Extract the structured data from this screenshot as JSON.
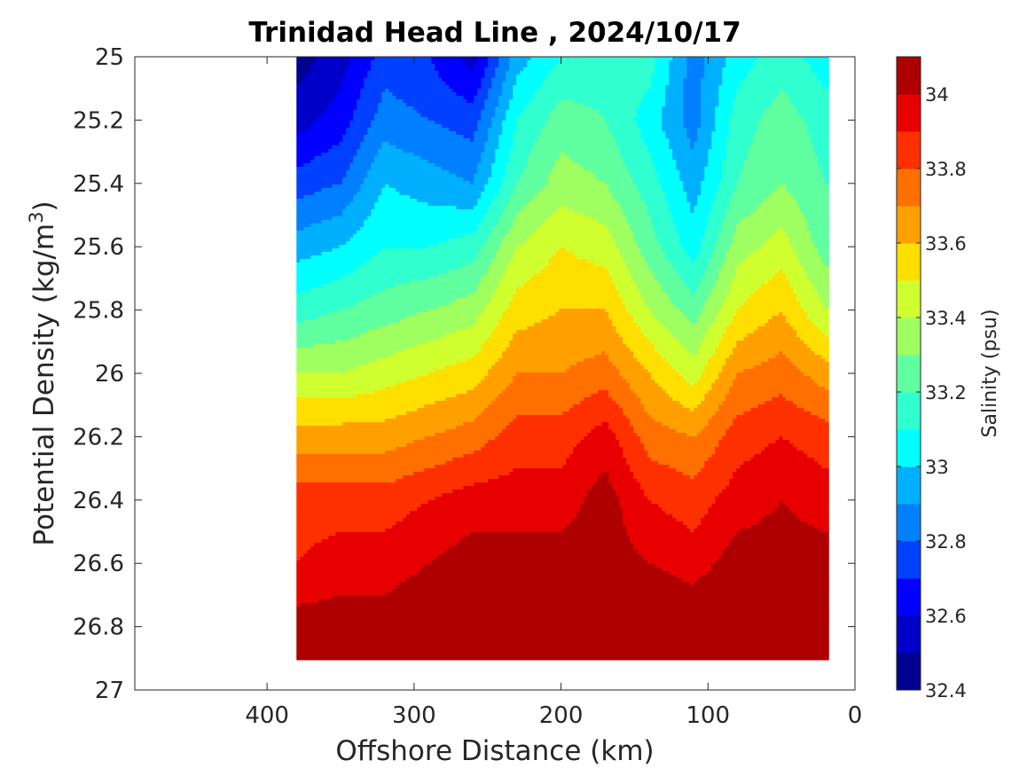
{
  "chart_data": {
    "type": "heatmap",
    "title": "Trinidad Head Line , 2024/10/17",
    "xlabel": "Offshore Distance (km)",
    "ylabel_main": "Potential Density (kg/m",
    "ylabel_sup": "3",
    "ylabel_close": ")",
    "x_reversed": true,
    "y_reversed": true,
    "xlim": [
      0,
      490
    ],
    "ylim": [
      25,
      27
    ],
    "x_ticks": [
      "400",
      "300",
      "200",
      "100",
      "0"
    ],
    "x_tick_values": [
      400,
      300,
      200,
      100,
      0
    ],
    "y_ticks": [
      "25",
      "25.2",
      "25.4",
      "25.6",
      "25.8",
      "26",
      "26.2",
      "26.4",
      "26.6",
      "26.8",
      "27"
    ],
    "y_tick_values": [
      25,
      25.2,
      25.4,
      25.6,
      25.8,
      26,
      26.2,
      26.4,
      26.6,
      26.8,
      27
    ],
    "colorbar": {
      "label": "Salinity (psu)",
      "range": [
        32.4,
        34.1
      ],
      "tick_labels": [
        "34",
        "33.8",
        "33.6",
        "33.4",
        "33.2",
        "33",
        "32.8",
        "32.6",
        "32.4"
      ],
      "tick_values": [
        34,
        33.8,
        33.6,
        33.4,
        33.2,
        33,
        32.8,
        32.6,
        32.4
      ],
      "levels": [
        32.4,
        32.5,
        32.6,
        32.7,
        32.8,
        32.9,
        33.0,
        33.1,
        33.2,
        33.3,
        33.4,
        33.5,
        33.6,
        33.7,
        33.8,
        33.9,
        34.0
      ],
      "colors": [
        "#00008f",
        "#0000c8",
        "#0000ff",
        "#0040ff",
        "#0080ff",
        "#00b0ff",
        "#00ffff",
        "#30ffd0",
        "#60ff9f",
        "#9fff60",
        "#d0ff30",
        "#ffdf00",
        "#ffa000",
        "#ff7000",
        "#ff3000",
        "#e80000",
        "#af0000"
      ]
    },
    "stations_km": [
      380,
      350,
      320,
      290,
      260,
      230,
      200,
      170,
      140,
      110,
      80,
      50,
      20
    ],
    "density_levels": [
      25.0,
      25.2,
      25.4,
      25.6,
      25.8,
      26.0,
      26.2,
      26.4,
      26.6,
      26.8,
      26.9
    ],
    "salinity": [
      [
        32.45,
        32.55,
        32.75,
        32.7,
        32.55,
        32.95,
        33.1,
        33.15,
        33.15,
        32.85,
        33.05,
        33.15,
        33.05
      ],
      [
        32.55,
        32.65,
        32.85,
        32.8,
        32.75,
        33.1,
        33.25,
        33.2,
        33.05,
        32.85,
        33.15,
        33.25,
        33.15
      ],
      [
        32.75,
        32.8,
        33.0,
        32.95,
        32.9,
        33.2,
        33.35,
        33.3,
        33.15,
        32.95,
        33.2,
        33.3,
        33.2
      ],
      [
        32.95,
        33.0,
        33.1,
        33.1,
        33.15,
        33.4,
        33.5,
        33.45,
        33.25,
        33.05,
        33.35,
        33.45,
        33.25
      ],
      [
        33.15,
        33.2,
        33.25,
        33.3,
        33.35,
        33.55,
        33.6,
        33.6,
        33.4,
        33.25,
        33.5,
        33.6,
        33.4
      ],
      [
        33.4,
        33.4,
        33.45,
        33.5,
        33.55,
        33.7,
        33.7,
        33.75,
        33.6,
        33.45,
        33.7,
        33.75,
        33.65
      ],
      [
        33.65,
        33.65,
        33.65,
        33.7,
        33.75,
        33.85,
        33.85,
        33.95,
        33.75,
        33.7,
        33.85,
        33.9,
        33.85
      ],
      [
        33.85,
        33.85,
        33.85,
        33.9,
        33.95,
        33.95,
        33.95,
        34.05,
        33.9,
        33.85,
        33.95,
        34.0,
        33.95
      ],
      [
        33.9,
        33.95,
        33.95,
        34.0,
        34.05,
        34.05,
        34.05,
        34.05,
        34.0,
        33.95,
        34.05,
        34.05,
        34.05
      ],
      [
        34.05,
        34.05,
        34.05,
        34.1,
        34.15,
        34.15,
        34.15,
        34.15,
        34.15,
        34.1,
        34.15,
        34.2,
        34.2
      ],
      [
        34.15,
        34.15,
        34.15,
        34.2,
        34.25,
        34.25,
        34.2,
        34.2,
        34.25,
        34.2,
        34.25,
        34.25,
        34.25
      ]
    ]
  }
}
